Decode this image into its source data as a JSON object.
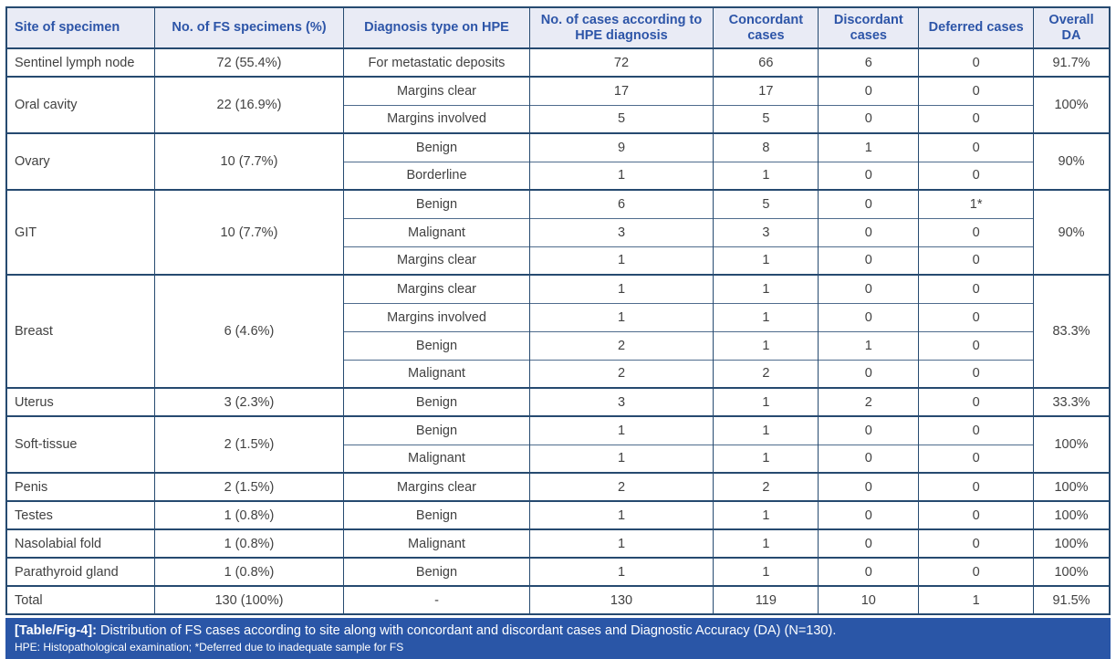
{
  "colors": {
    "border": "#264a70",
    "header_bg": "#e9ebf5",
    "header_text": "#2d55a8",
    "body_text": "#414141",
    "caption_bg": "#2a56a7",
    "caption_text": "#ffffff"
  },
  "table": {
    "headers": [
      "Site of specimen",
      "No. of FS specimens (%)",
      "Diagnosis type on HPE",
      "No. of cases according to HPE diagnosis",
      "Concordant cases",
      "Discordant cases",
      "Deferred cases",
      "Overall DA"
    ],
    "groups": [
      {
        "site": "Sentinel lymph node",
        "specimens": "72 (55.4%)",
        "da": "91.7%",
        "rows": [
          {
            "diagnosis": "For metastatic deposits",
            "hpe": "72",
            "concordant": "66",
            "discordant": "6",
            "deferred": "0"
          }
        ]
      },
      {
        "site": "Oral cavity",
        "specimens": "22 (16.9%)",
        "da": "100%",
        "rows": [
          {
            "diagnosis": "Margins clear",
            "hpe": "17",
            "concordant": "17",
            "discordant": "0",
            "deferred": "0"
          },
          {
            "diagnosis": "Margins involved",
            "hpe": "5",
            "concordant": "5",
            "discordant": "0",
            "deferred": "0"
          }
        ]
      },
      {
        "site": "Ovary",
        "specimens": "10 (7.7%)",
        "da": "90%",
        "rows": [
          {
            "diagnosis": "Benign",
            "hpe": "9",
            "concordant": "8",
            "discordant": "1",
            "deferred": "0"
          },
          {
            "diagnosis": "Borderline",
            "hpe": "1",
            "concordant": "1",
            "discordant": "0",
            "deferred": "0"
          }
        ]
      },
      {
        "site": "GIT",
        "specimens": "10 (7.7%)",
        "da": "90%",
        "rows": [
          {
            "diagnosis": "Benign",
            "hpe": "6",
            "concordant": "5",
            "discordant": "0",
            "deferred": "1*"
          },
          {
            "diagnosis": "Malignant",
            "hpe": "3",
            "concordant": "3",
            "discordant": "0",
            "deferred": "0"
          },
          {
            "diagnosis": "Margins clear",
            "hpe": "1",
            "concordant": "1",
            "discordant": "0",
            "deferred": "0"
          }
        ]
      },
      {
        "site": "Breast",
        "specimens": "6 (4.6%)",
        "da": "83.3%",
        "rows": [
          {
            "diagnosis": "Margins clear",
            "hpe": "1",
            "concordant": "1",
            "discordant": "0",
            "deferred": "0"
          },
          {
            "diagnosis": "Margins involved",
            "hpe": "1",
            "concordant": "1",
            "discordant": "0",
            "deferred": "0"
          },
          {
            "diagnosis": "Benign",
            "hpe": "2",
            "concordant": "1",
            "discordant": "1",
            "deferred": "0"
          },
          {
            "diagnosis": "Malignant",
            "hpe": "2",
            "concordant": "2",
            "discordant": "0",
            "deferred": "0"
          }
        ]
      },
      {
        "site": "Uterus",
        "specimens": "3 (2.3%)",
        "da": "33.3%",
        "rows": [
          {
            "diagnosis": "Benign",
            "hpe": "3",
            "concordant": "1",
            "discordant": "2",
            "deferred": "0"
          }
        ]
      },
      {
        "site": "Soft-tissue",
        "specimens": "2 (1.5%)",
        "da": "100%",
        "rows": [
          {
            "diagnosis": "Benign",
            "hpe": "1",
            "concordant": "1",
            "discordant": "0",
            "deferred": "0"
          },
          {
            "diagnosis": "Malignant",
            "hpe": "1",
            "concordant": "1",
            "discordant": "0",
            "deferred": "0"
          }
        ]
      },
      {
        "site": "Penis",
        "specimens": "2 (1.5%)",
        "da": "100%",
        "rows": [
          {
            "diagnosis": "Margins clear",
            "hpe": "2",
            "concordant": "2",
            "discordant": "0",
            "deferred": "0"
          }
        ]
      },
      {
        "site": "Testes",
        "specimens": "1 (0.8%)",
        "da": "100%",
        "rows": [
          {
            "diagnosis": "Benign",
            "hpe": "1",
            "concordant": "1",
            "discordant": "0",
            "deferred": "0"
          }
        ]
      },
      {
        "site": "Nasolabial fold",
        "specimens": "1 (0.8%)",
        "da": "100%",
        "rows": [
          {
            "diagnosis": "Malignant",
            "hpe": "1",
            "concordant": "1",
            "discordant": "0",
            "deferred": "0"
          }
        ]
      },
      {
        "site": "Parathyroid gland",
        "specimens": "1 (0.8%)",
        "da": "100%",
        "rows": [
          {
            "diagnosis": "Benign",
            "hpe": "1",
            "concordant": "1",
            "discordant": "0",
            "deferred": "0"
          }
        ]
      },
      {
        "site": "Total",
        "specimens": "130 (100%)",
        "da": "91.5%",
        "rows": [
          {
            "diagnosis": "-",
            "hpe": "130",
            "concordant": "119",
            "discordant": "10",
            "deferred": "1"
          }
        ]
      }
    ]
  },
  "caption": {
    "label": "[Table/Fig-4]:",
    "text": "Distribution of FS cases according to site along with concordant and discordant cases and Diagnostic Accuracy (DA) (N=130).",
    "footnote": "HPE: Histopathological examination; *Deferred due to inadequate sample for FS"
  }
}
